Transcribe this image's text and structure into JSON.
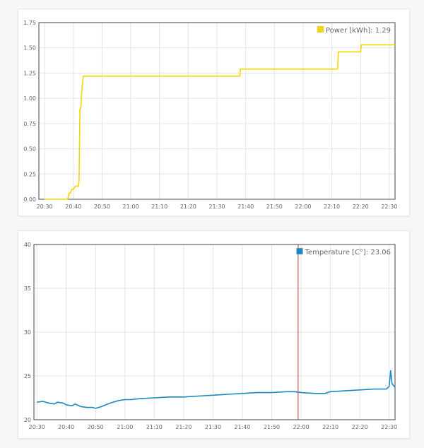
{
  "chart_data": [
    {
      "type": "line",
      "title": "",
      "xlabel": "",
      "ylabel": "",
      "ylim": [
        0,
        1.75
      ],
      "y_ticks": [
        "0.00",
        "0.25",
        "0.50",
        "0.75",
        "1.00",
        "1.25",
        "1.50",
        "1.75"
      ],
      "x_ticks": [
        "20:30",
        "20:40",
        "20:50",
        "21:00",
        "21:10",
        "21:20",
        "21:30",
        "21:40",
        "21:50",
        "22:00",
        "22:10",
        "22:20",
        "22:30"
      ],
      "legend_position": "top-right",
      "grid": true,
      "series": [
        {
          "name": "Power [kWh]",
          "legend_value": "1.29",
          "color": "#f0d800",
          "x": [
            "20:30",
            "20:38",
            "20:38.5",
            "20:39",
            "20:39.5",
            "20:40",
            "20:40.8",
            "20:41",
            "20:41.8",
            "20:42",
            "20:42.3",
            "20:42.6",
            "20:43",
            "20:43.5",
            "21:38",
            "21:38.1",
            "22:12",
            "22:12.3",
            "22:20",
            "22:20.3",
            "22:32"
          ],
          "values": [
            0.0,
            0.0,
            0.06,
            0.06,
            0.1,
            0.1,
            0.13,
            0.13,
            0.13,
            0.19,
            0.9,
            0.9,
            1.1,
            1.22,
            1.22,
            1.29,
            1.29,
            1.46,
            1.46,
            1.53,
            1.53
          ]
        }
      ]
    },
    {
      "type": "line",
      "title": "",
      "xlabel": "",
      "ylabel": "",
      "ylim": [
        20,
        40
      ],
      "y_ticks": [
        "20",
        "25",
        "30",
        "35",
        "40"
      ],
      "x_ticks": [
        "20:30",
        "20:40",
        "20:50",
        "21:00",
        "21:10",
        "21:20",
        "21:30",
        "21:40",
        "21:50",
        "22:00",
        "22:10",
        "22:20",
        "22:30"
      ],
      "legend_position": "top-right",
      "grid": true,
      "marker_time": "21:59",
      "marker_color": "#c0392b",
      "series": [
        {
          "name": "Temperature [C°]",
          "legend_value": "23.06",
          "color": "#1a88c1",
          "x": [
            "20:30",
            "20:32",
            "20:34",
            "20:36",
            "20:37",
            "20:39",
            "20:40",
            "20:42",
            "20:43",
            "20:45",
            "20:47",
            "20:49",
            "20:50",
            "20:52",
            "20:55",
            "20:58",
            "21:00",
            "21:02",
            "21:05",
            "21:10",
            "21:15",
            "21:20",
            "21:25",
            "21:30",
            "21:35",
            "21:40",
            "21:45",
            "21:50",
            "21:55",
            "21:58",
            "22:00",
            "22:05",
            "22:08",
            "22:10",
            "22:15",
            "22:20",
            "22:25",
            "22:29",
            "22:30",
            "22:30.5",
            "22:31",
            "22:32"
          ],
          "values": [
            22.0,
            22.1,
            21.9,
            21.8,
            22.0,
            21.9,
            21.7,
            21.6,
            21.8,
            21.5,
            21.4,
            21.4,
            21.3,
            21.5,
            21.9,
            22.2,
            22.3,
            22.3,
            22.4,
            22.5,
            22.6,
            22.6,
            22.7,
            22.8,
            22.9,
            23.0,
            23.1,
            23.1,
            23.2,
            23.2,
            23.1,
            23.0,
            23.0,
            23.2,
            23.3,
            23.4,
            23.5,
            23.5,
            23.8,
            25.6,
            24.1,
            23.7
          ]
        }
      ]
    }
  ]
}
